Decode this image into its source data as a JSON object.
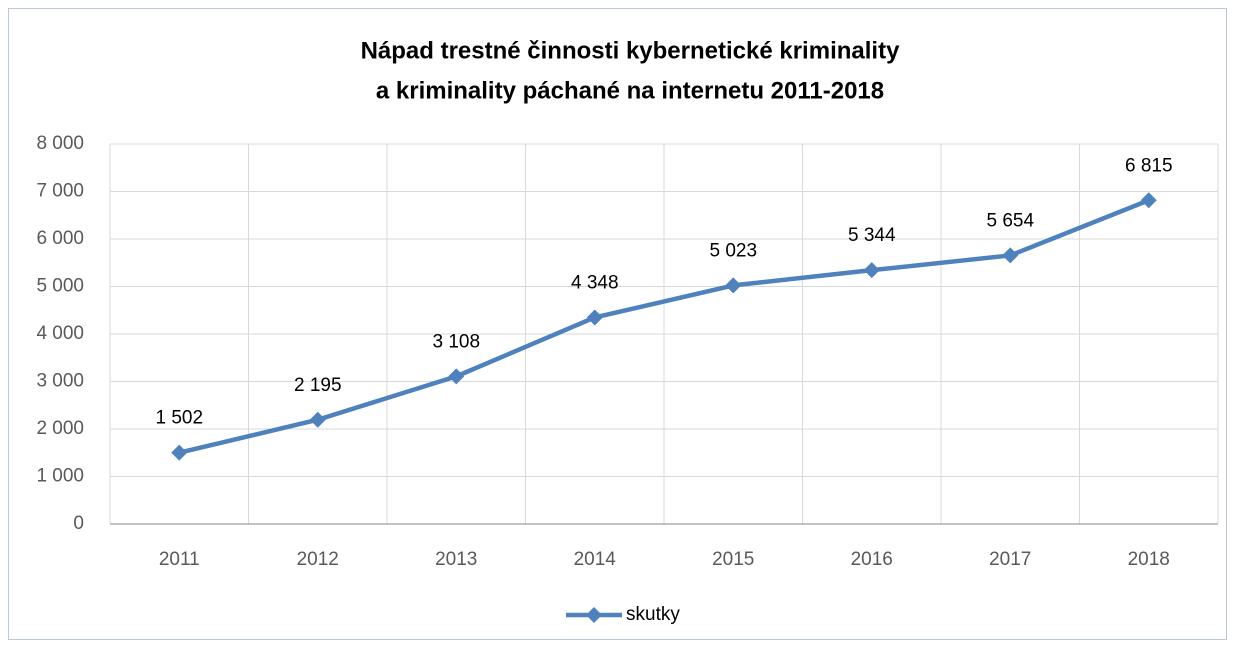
{
  "chart_data": {
    "type": "line",
    "title": [
      "Nápad trestné činnosti kybernetické kriminality",
      "a kriminality páchané na internetu 2011-2018"
    ],
    "categories": [
      "2011",
      "2012",
      "2013",
      "2014",
      "2015",
      "2016",
      "2017",
      "2018"
    ],
    "series": [
      {
        "name": "skutky",
        "color": "#4f81bd",
        "values": [
          1502,
          2195,
          3108,
          4348,
          5023,
          5344,
          5654,
          6815
        ],
        "value_labels": [
          "1 502",
          "2 195",
          "3 108",
          "4 348",
          "5 023",
          "5 344",
          "5 654",
          "6 815"
        ]
      }
    ],
    "ylim": [
      0,
      8000
    ],
    "yticks": [
      0,
      {
        "value": 1000,
        "label": "1 000"
      },
      {
        "value": 2000,
        "label": "2 000"
      },
      {
        "value": 3000,
        "label": "3 000"
      },
      {
        "value": 4000,
        "label": "4 000"
      },
      {
        "value": 5000,
        "label": "5 000"
      },
      {
        "value": 6000,
        "label": "6 000"
      },
      {
        "value": 7000,
        "label": "7 000"
      },
      {
        "value": 8000,
        "label": "8 000"
      }
    ],
    "grid": true,
    "legend": "bottom"
  }
}
